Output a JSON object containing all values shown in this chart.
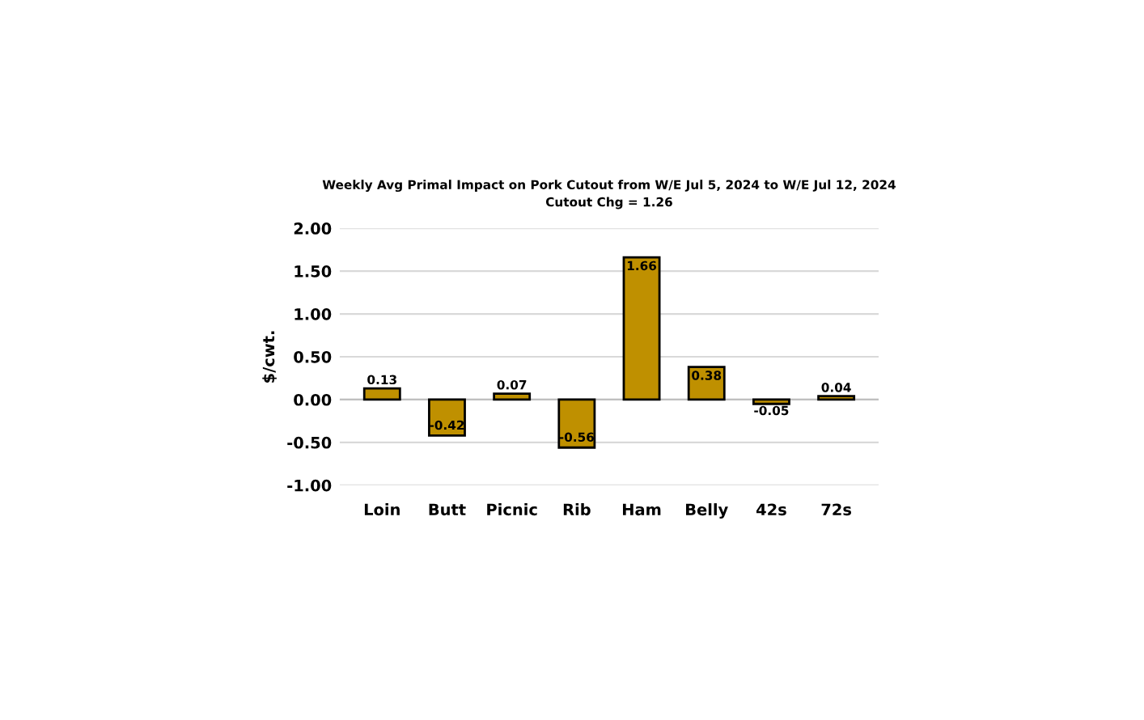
{
  "chart_data": {
    "type": "bar",
    "title": "Weekly Avg Primal Impact on Pork Cutout from W/E Jul 5, 2024 to W/E Jul 12, 2024",
    "subtitle": "Cutout Chg = 1.26",
    "ylabel": "$/cwt.",
    "categories": [
      "Loin",
      "Butt",
      "Picnic",
      "Rib",
      "Ham",
      "Belly",
      "42s",
      "72s"
    ],
    "values": [
      0.13,
      -0.42,
      0.07,
      -0.56,
      1.66,
      0.38,
      -0.05,
      0.04
    ],
    "color": "#bf9000",
    "ylim": [
      -1.0,
      2.0
    ],
    "yticks": [
      {
        "value": -1.0,
        "label": "-1.00"
      },
      {
        "value": -0.5,
        "label": "-0.50"
      },
      {
        "value": 0.0,
        "label": "0.00"
      },
      {
        "value": 0.5,
        "label": "0.50"
      },
      {
        "value": 1.0,
        "label": "1.00"
      },
      {
        "value": 1.5,
        "label": "1.50"
      },
      {
        "value": 2.0,
        "label": "2.00"
      }
    ],
    "grid": "y",
    "data_labels": true,
    "legend": false
  }
}
